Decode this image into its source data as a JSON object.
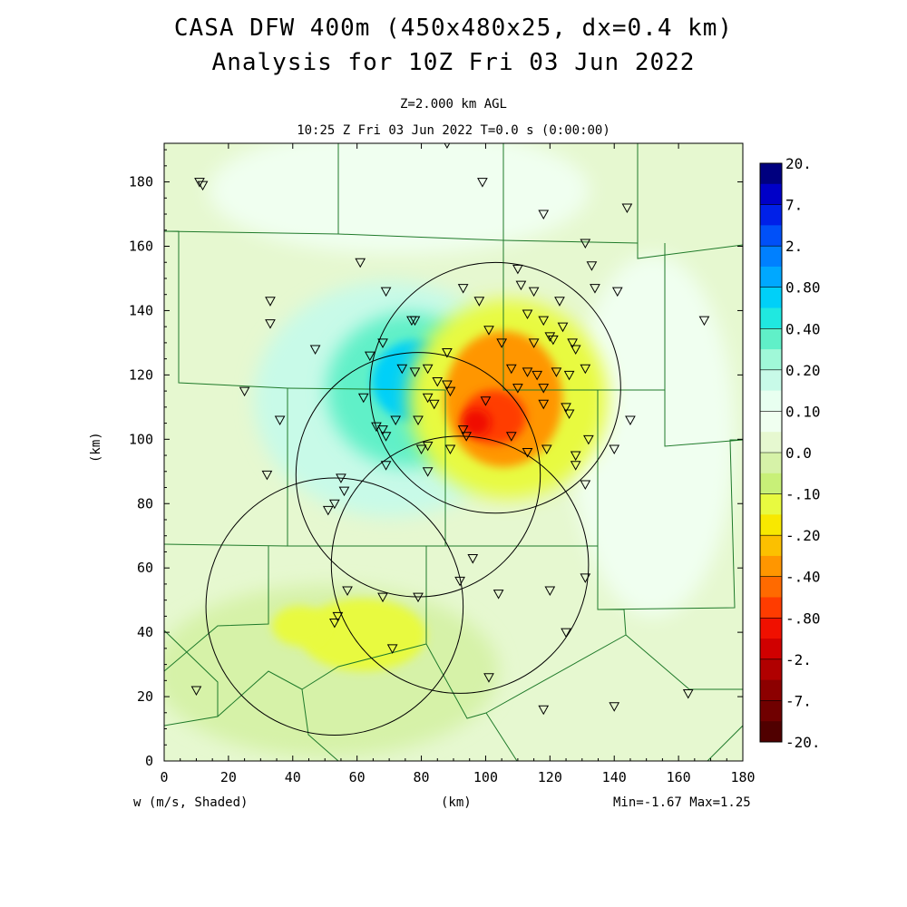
{
  "title": {
    "line1": "CASA DFW 400m (450x480x25, dx=0.4 km)",
    "line2": "Analysis for 10Z Fri 03 Jun 2022"
  },
  "subtitle": {
    "level": "Z=2.000 km AGL",
    "time": "10:25 Z Fri 03 Jun 2022    T=0.0 s (0:00:00)"
  },
  "axes": {
    "xlabel": "(km)",
    "ylabel": "(km)",
    "xticks": [
      0,
      20,
      40,
      60,
      80,
      100,
      120,
      140,
      160,
      180
    ],
    "yticks": [
      0,
      20,
      40,
      60,
      80,
      100,
      120,
      140,
      160,
      180
    ],
    "xlim": [
      0,
      180
    ],
    "ylim": [
      0,
      192
    ]
  },
  "footer": {
    "field": "w (m/s, Shaded)",
    "stats": "Min=-1.67 Max=1.25"
  },
  "colorbar": {
    "labels": [
      "20.",
      "7.",
      "2.",
      "0.80",
      "0.40",
      "0.20",
      "0.10",
      "0.0",
      "-.10",
      "-.20",
      "-.40",
      "-.80",
      "-2.",
      "-7.",
      "-20."
    ],
    "colors": [
      "#00007f",
      "#0000c8",
      "#0020e8",
      "#0050f8",
      "#0080ff",
      "#00a8ff",
      "#00d0f8",
      "#20e8e0",
      "#60f0c8",
      "#a0f8d8",
      "#c8fae8",
      "#e8fff0",
      "#f0fff0",
      "#e6f8d0",
      "#d6f2a8",
      "#c8f078",
      "#e8fa40",
      "#f8e800",
      "#fcc000",
      "#ff9600",
      "#ff6a00",
      "#ff3c00",
      "#f01000",
      "#d00000",
      "#b00000",
      "#8c0000",
      "#700000",
      "#500000"
    ]
  },
  "radar_circles": [
    {
      "cx": 103,
      "cy": 116,
      "r": 39
    },
    {
      "cx": 79,
      "cy": 89,
      "r": 38
    },
    {
      "cx": 92,
      "cy": 61,
      "r": 40
    },
    {
      "cx": 53,
      "cy": 48,
      "r": 40
    }
  ],
  "stations": [
    [
      11,
      180
    ],
    [
      12,
      179
    ],
    [
      99,
      180
    ],
    [
      118,
      170
    ],
    [
      144,
      172
    ],
    [
      131,
      161
    ],
    [
      61,
      155
    ],
    [
      133,
      154
    ],
    [
      110,
      153
    ],
    [
      33,
      143
    ],
    [
      33,
      136
    ],
    [
      69,
      146
    ],
    [
      93,
      147
    ],
    [
      98,
      143
    ],
    [
      111,
      148
    ],
    [
      115,
      146
    ],
    [
      123,
      143
    ],
    [
      134,
      147
    ],
    [
      141,
      146
    ],
    [
      47,
      128
    ],
    [
      64,
      126
    ],
    [
      68,
      130
    ],
    [
      77,
      137
    ],
    [
      78,
      137
    ],
    [
      88,
      127
    ],
    [
      101,
      134
    ],
    [
      105,
      130
    ],
    [
      113,
      139
    ],
    [
      115,
      130
    ],
    [
      118,
      137
    ],
    [
      120,
      132
    ],
    [
      121,
      131
    ],
    [
      124,
      135
    ],
    [
      127,
      130
    ],
    [
      128,
      128
    ],
    [
      74,
      122
    ],
    [
      78,
      121
    ],
    [
      82,
      122
    ],
    [
      85,
      118
    ],
    [
      108,
      122
    ],
    [
      110,
      116
    ],
    [
      113,
      121
    ],
    [
      116,
      120
    ],
    [
      118,
      116
    ],
    [
      122,
      121
    ],
    [
      126,
      120
    ],
    [
      131,
      122
    ],
    [
      25,
      115
    ],
    [
      36,
      106
    ],
    [
      62,
      113
    ],
    [
      66,
      104
    ],
    [
      68,
      103
    ],
    [
      72,
      106
    ],
    [
      79,
      106
    ],
    [
      82,
      113
    ],
    [
      84,
      111
    ],
    [
      88,
      117
    ],
    [
      89,
      115
    ],
    [
      100,
      112
    ],
    [
      118,
      111
    ],
    [
      125,
      110
    ],
    [
      126,
      108
    ],
    [
      132,
      100
    ],
    [
      140,
      97
    ],
    [
      145,
      106
    ],
    [
      69,
      101
    ],
    [
      80,
      97
    ],
    [
      82,
      98
    ],
    [
      89,
      97
    ],
    [
      93,
      103
    ],
    [
      94,
      101
    ],
    [
      108,
      101
    ],
    [
      113,
      96
    ],
    [
      119,
      97
    ],
    [
      128,
      95
    ],
    [
      128,
      92
    ],
    [
      131,
      86
    ],
    [
      32,
      89
    ],
    [
      55,
      88
    ],
    [
      56,
      84
    ],
    [
      53,
      80
    ],
    [
      51,
      78
    ],
    [
      69,
      92
    ],
    [
      82,
      90
    ],
    [
      96,
      63
    ],
    [
      92,
      56
    ],
    [
      68,
      51
    ],
    [
      79,
      51
    ],
    [
      57,
      53
    ],
    [
      54,
      45
    ],
    [
      53,
      43
    ],
    [
      71,
      35
    ],
    [
      120,
      53
    ],
    [
      125,
      40
    ],
    [
      131,
      57
    ],
    [
      104,
      52
    ],
    [
      101,
      26
    ],
    [
      118,
      16
    ],
    [
      140,
      17
    ],
    [
      163,
      21
    ],
    [
      10,
      22
    ],
    [
      88,
      192
    ],
    [
      168,
      137
    ]
  ],
  "colors": {
    "background": "#e6f8d0",
    "boundary": "#1f7a2a",
    "station": "#000000"
  }
}
